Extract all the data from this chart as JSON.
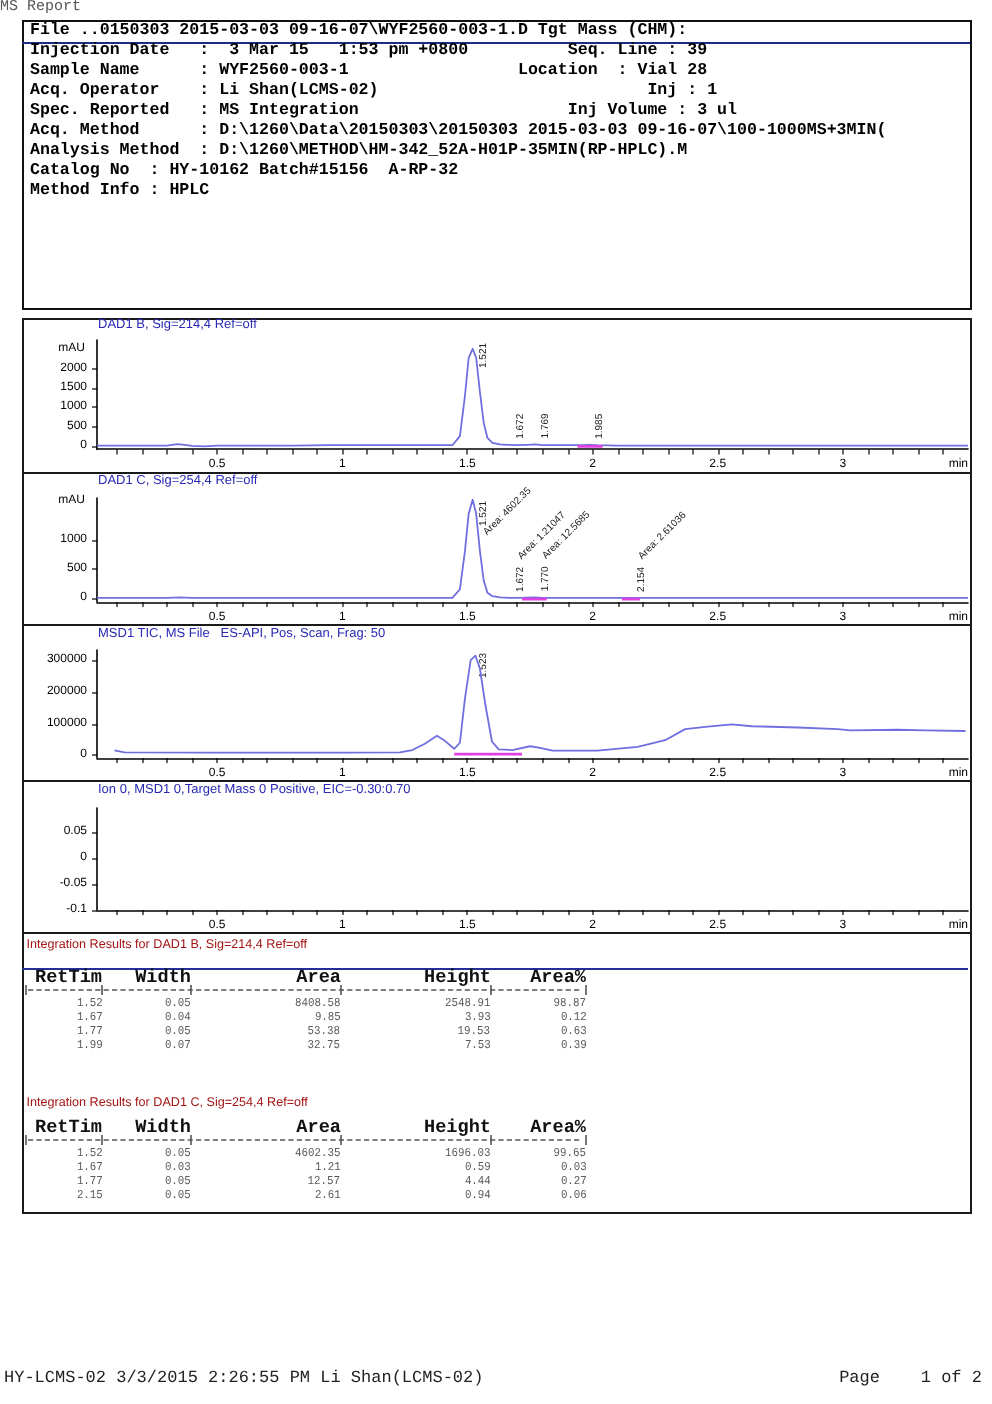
{
  "chart_data": [
    {
      "type": "other",
      "title": "MS Report",
      "subtitle": "File ..0150303 2015-03-03 09-16-07\\WYF2560-003-1.D Tgt Mass (CHM):",
      "annotations": [
        "Injection Date   :  3 Mar 15   1:53 pm +0800          Seq. Line : 39",
        "Sample Name      : WYF2560-003-1                 Location  : Vial 28",
        "Acq. Operator    : Li Shan(LCMS-02)                           Inj : 1",
        "Spec. Reported   : MS Integration                     Inj Volume : 3 ul",
        "Acq. Method      : D:\\1260\\Data\\20150303\\20150303 2015-03-03 09-16-07\\100-1000MS+3MIN(",
        "Analysis Method  : D:\\1260\\METHOD\\HM-342_52A-H01P-35MIN(RP-HPLC).M",
        "Catalog No  : HY-10162 Batch#15156  A-RP-32",
        "Method Info : HPLC"
      ]
    },
    {
      "type": "line",
      "title": "DAD1 B, Sig=214,4 Ref=off",
      "xlabel": "min",
      "ylabel": "mAU",
      "xlim": [
        0.02,
        3.5
      ],
      "ylim": [
        -100,
        2770
      ],
      "xticks": [
        {
          "value": 0.1,
          "label": null
        },
        {
          "value": 0.2,
          "label": null
        },
        {
          "value": 0.3,
          "label": null
        },
        {
          "value": 0.4,
          "label": null
        },
        0.5,
        {
          "value": 0.6,
          "label": null
        },
        {
          "value": 0.7,
          "label": null
        },
        {
          "value": 0.8,
          "label": null
        },
        {
          "value": 0.9,
          "label": null
        },
        1,
        {
          "value": 1.1,
          "label": null
        },
        {
          "value": 1.2,
          "label": null
        },
        {
          "value": 1.3,
          "label": null
        },
        {
          "value": 1.4,
          "label": null
        },
        1.5,
        {
          "value": 1.6,
          "label": null
        },
        {
          "value": 1.7,
          "label": null
        },
        {
          "value": 1.8,
          "label": null
        },
        {
          "value": 1.9,
          "label": null
        },
        2,
        {
          "value": 2.1,
          "label": null
        },
        {
          "value": 2.2,
          "label": null
        },
        {
          "value": 2.3,
          "label": null
        },
        {
          "value": 2.4,
          "label": null
        },
        2.5,
        {
          "value": 2.6,
          "label": null
        },
        {
          "value": 2.7,
          "label": null
        },
        {
          "value": 2.8,
          "label": null
        },
        {
          "value": 2.9,
          "label": null
        },
        3,
        {
          "value": 3.1,
          "label": null
        },
        {
          "value": 3.2,
          "label": null
        },
        {
          "value": 3.3,
          "label": null
        },
        {
          "value": 3.4,
          "label": null
        }
      ],
      "yticks": [
        0,
        500,
        1000,
        1500,
        2000
      ],
      "series": [
        {
          "color": "#6f6fe0",
          "x": [
            0.02,
            0.2,
            0.3,
            0.34,
            0.37,
            0.4,
            0.45,
            0.5,
            0.8,
            0.95,
            1.0,
            1.3,
            1.44,
            1.47,
            1.49,
            1.505,
            1.521,
            1.535,
            1.55,
            1.565,
            1.58,
            1.6,
            1.63,
            1.66,
            1.672,
            1.69,
            1.74,
            1.769,
            1.8,
            1.9,
            1.96,
            1.985,
            2.02,
            2.1,
            2.5,
            3.0,
            3.5
          ],
          "values": [
            0,
            0,
            0,
            40,
            20,
            -10,
            -20,
            0,
            0,
            10,
            10,
            10,
            10,
            250,
            1300,
            2300,
            2540,
            2300,
            1400,
            600,
            200,
            70,
            30,
            20,
            20,
            10,
            20,
            30,
            10,
            10,
            10,
            20,
            10,
            0,
            0,
            0,
            0
          ]
        },
        {
          "color": "#e040e0",
          "x": [
            1.94,
            2.04
          ],
          "values": [
            -20,
            -20
          ]
        }
      ],
      "annotations": [
        {
          "text": "1.521",
          "x": 1.521,
          "y": 2540
        },
        {
          "text": "1.672",
          "x": 1.672,
          "y": 20
        },
        {
          "text": "1.769",
          "x": 1.769,
          "y": 30
        },
        {
          "text": "1.985",
          "x": 1.985,
          "y": 20
        }
      ]
    },
    {
      "type": "line",
      "title": "DAD1 C, Sig=254,4 Ref=off",
      "xlabel": "min",
      "ylabel": "mAU",
      "xlim": [
        0.02,
        3.5
      ],
      "ylim": [
        -70,
        1720
      ],
      "xticks": [
        {
          "value": 0.1,
          "label": null
        },
        {
          "value": 0.2,
          "label": null
        },
        {
          "value": 0.3,
          "label": null
        },
        {
          "value": 0.4,
          "label": null
        },
        0.5,
        {
          "value": 0.6,
          "label": null
        },
        {
          "value": 0.7,
          "label": null
        },
        {
          "value": 0.8,
          "label": null
        },
        {
          "value": 0.9,
          "label": null
        },
        1,
        {
          "value": 1.1,
          "label": null
        },
        {
          "value": 1.2,
          "label": null
        },
        {
          "value": 1.3,
          "label": null
        },
        {
          "value": 1.4,
          "label": null
        },
        1.5,
        {
          "value": 1.6,
          "label": null
        },
        {
          "value": 1.7,
          "label": null
        },
        {
          "value": 1.8,
          "label": null
        },
        {
          "value": 1.9,
          "label": null
        },
        2,
        {
          "value": 2.1,
          "label": null
        },
        {
          "value": 2.2,
          "label": null
        },
        {
          "value": 2.3,
          "label": null
        },
        {
          "value": 2.4,
          "label": null
        },
        2.5,
        {
          "value": 2.6,
          "label": null
        },
        {
          "value": 2.7,
          "label": null
        },
        {
          "value": 2.8,
          "label": null
        },
        {
          "value": 2.9,
          "label": null
        },
        3,
        {
          "value": 3.1,
          "label": null
        },
        {
          "value": 3.2,
          "label": null
        },
        {
          "value": 3.3,
          "label": null
        },
        {
          "value": 3.4,
          "label": null
        }
      ],
      "yticks": [
        0,
        500,
        1000
      ],
      "series": [
        {
          "color": "#6f6fe0",
          "x": [
            0.02,
            0.3,
            0.35,
            0.4,
            1.0,
            1.44,
            1.47,
            1.49,
            1.505,
            1.521,
            1.535,
            1.55,
            1.565,
            1.58,
            1.6,
            1.63,
            1.672,
            1.7,
            1.77,
            1.8,
            2.154,
            2.2,
            2.5,
            3.0,
            3.5
          ],
          "values": [
            0,
            0,
            10,
            0,
            0,
            0,
            150,
            800,
            1450,
            1690,
            1450,
            800,
            300,
            90,
            30,
            10,
            0,
            0,
            10,
            0,
            0,
            0,
            0,
            0,
            0
          ]
        },
        {
          "color": "#e040e0",
          "x": [
            1.718,
            1.817,
            1.9,
            2.117,
            2.189
          ],
          "values": [
            -20,
            -20,
            null,
            -20,
            -20
          ]
        }
      ],
      "annotations": [
        {
          "text": "1.521",
          "x": 1.521,
          "y": 1690
        },
        {
          "text": "Area: 4602.35",
          "x": 1.521,
          "y": 1100
        },
        {
          "text": "1.672",
          "x": 1.672,
          "y": 0
        },
        "Area: 1.21047",
        {
          "text": "1.770",
          "x": 1.77,
          "y": 10
        },
        "Area: 12.5685",
        {
          "text": "2.154",
          "x": 2.154,
          "y": 0
        },
        "Area: 2.61036"
      ]
    },
    {
      "type": "line",
      "title": "MSD1 TIC, MS File   ES-API, Pos, Scan, Frag: 50",
      "xlabel": "min",
      "xlim": [
        0.02,
        3.5
      ],
      "ylim": [
        -8000,
        332000
      ],
      "xticks": [
        {
          "value": 0.1,
          "label": null
        },
        {
          "value": 0.2,
          "label": null
        },
        {
          "value": 0.3,
          "label": null
        },
        {
          "value": 0.4,
          "label": null
        },
        0.5,
        {
          "value": 0.6,
          "label": null
        },
        {
          "value": 0.7,
          "label": null
        },
        {
          "value": 0.8,
          "label": null
        },
        {
          "value": 0.9,
          "label": null
        },
        1,
        {
          "value": 1.1,
          "label": null
        },
        {
          "value": 1.2,
          "label": null
        },
        {
          "value": 1.3,
          "label": null
        },
        {
          "value": 1.4,
          "label": null
        },
        1.5,
        {
          "value": 1.6,
          "label": null
        },
        {
          "value": 1.7,
          "label": null
        },
        {
          "value": 1.8,
          "label": null
        },
        {
          "value": 1.9,
          "label": null
        },
        2,
        {
          "value": 2.1,
          "label": null
        },
        {
          "value": 2.2,
          "label": null
        },
        {
          "value": 2.3,
          "label": null
        },
        {
          "value": 2.4,
          "label": null
        },
        2.5,
        {
          "value": 2.6,
          "label": null
        },
        {
          "value": 2.7,
          "label": null
        },
        {
          "value": 2.8,
          "label": null
        },
        {
          "value": 2.9,
          "label": null
        },
        3,
        {
          "value": 3.1,
          "label": null
        },
        {
          "value": 3.2,
          "label": null
        },
        {
          "value": 3.3,
          "label": null
        },
        {
          "value": 3.4,
          "label": null
        }
      ],
      "yticks": [
        0,
        100000,
        200000,
        300000
      ],
      "series": [
        {
          "color": "#6f6fe0",
          "x": [
            0.09,
            0.13,
            0.5,
            1.0,
            1.23,
            1.28,
            1.33,
            1.378,
            1.41,
            1.447,
            1.47,
            1.49,
            1.513,
            1.532,
            1.55,
            1.572,
            1.598,
            1.625,
            1.68,
            1.75,
            1.785,
            1.84,
            2.02,
            2.18,
            2.29,
            2.37,
            2.45,
            2.556,
            2.636,
            2.82,
            2.98,
            3.03,
            3.22,
            3.33,
            3.49
          ],
          "values": [
            16000,
            10000,
            9000,
            9000,
            10000,
            17000,
            37000,
            62000,
            46000,
            21000,
            40000,
            179000,
            300000,
            314000,
            273000,
            158000,
            44000,
            19000,
            17000,
            29000,
            25000,
            15000,
            15000,
            27000,
            48000,
            83000,
            90000,
            98000,
            92000,
            88000,
            83000,
            79000,
            81000,
            79000,
            77000
          ]
        },
        {
          "color": "#e040e0",
          "x": [
            1.447,
            1.718
          ],
          "values": [
            4000,
            4000
          ]
        }
      ],
      "annotations": [
        {
          "text": "1.523",
          "x": 1.523,
          "y": 314000
        }
      ]
    },
    {
      "type": "line",
      "title": "Ion 0, MSD1 0,Target Mass 0 Positive, EIC=-0.30:0.70",
      "xlabel": "min",
      "xlim": [
        0.02,
        3.5
      ],
      "ylim": [
        -0.1,
        0.095
      ],
      "xticks": [
        {
          "value": 0.1,
          "label": null
        },
        {
          "value": 0.2,
          "label": null
        },
        {
          "value": 0.3,
          "label": null
        },
        {
          "value": 0.4,
          "label": null
        },
        0.5,
        {
          "value": 0.6,
          "label": null
        },
        {
          "value": 0.7,
          "label": null
        },
        {
          "value": 0.8,
          "label": null
        },
        {
          "value": 0.9,
          "label": null
        },
        1,
        {
          "value": 1.1,
          "label": null
        },
        {
          "value": 1.2,
          "label": null
        },
        {
          "value": 1.3,
          "label": null
        },
        {
          "value": 1.4,
          "label": null
        },
        1.5,
        {
          "value": 1.6,
          "label": null
        },
        {
          "value": 1.7,
          "label": null
        },
        {
          "value": 1.8,
          "label": null
        },
        {
          "value": 1.9,
          "label": null
        },
        2,
        {
          "value": 2.1,
          "label": null
        },
        {
          "value": 2.2,
          "label": null
        },
        {
          "value": 2.3,
          "label": null
        },
        {
          "value": 2.4,
          "label": null
        },
        2.5,
        {
          "value": 2.6,
          "label": null
        },
        {
          "value": 2.7,
          "label": null
        },
        {
          "value": 2.8,
          "label": null
        },
        {
          "value": 2.9,
          "label": null
        },
        3,
        {
          "value": 3.1,
          "label": null
        },
        {
          "value": 3.2,
          "label": null
        },
        {
          "value": 3.3,
          "label": null
        },
        {
          "value": 3.4,
          "label": null
        }
      ],
      "yticks": [
        -0.1,
        -0.05,
        0,
        0.05
      ]
    },
    {
      "type": "other",
      "title": "Integration Results for DAD1 B, Sig=214,4 Ref=off",
      "categories": [
        "RetTim",
        "Width",
        "Area",
        "Height",
        "Area%"
      ],
      "annotations": [
        "1.52",
        "0.05",
        "8408.58",
        "2548.91",
        "98.87",
        "1.67",
        "0.04",
        "9.85",
        "3.93",
        "0.12",
        "1.77",
        "0.05",
        "53.38",
        "19.53",
        "0.63",
        "1.99",
        "0.07",
        "32.75",
        "7.53",
        "0.39"
      ]
    },
    {
      "type": "other",
      "title": "Integration Results for DAD1 C, Sig=254,4 Ref=off",
      "categories": [
        "RetTim",
        "Width",
        "Area",
        "Height",
        "Area%"
      ],
      "annotations": [
        "1.52",
        "0.05",
        "4602.35",
        "1696.03",
        "99.65",
        "1.67",
        "0.03",
        "1.21",
        "0.59",
        "0.03",
        "1.77",
        "0.05",
        "12.57",
        "4.44",
        "0.27",
        "2.15",
        "0.05",
        "2.61",
        "0.94",
        "0.06"
      ]
    },
    {
      "type": "other",
      "annotations": [
        "HY-LCMS-02 3/3/2015 2:26:55 PM Li Shan(LCMS-02)",
        "Page    1 of 2"
      ]
    }
  ]
}
